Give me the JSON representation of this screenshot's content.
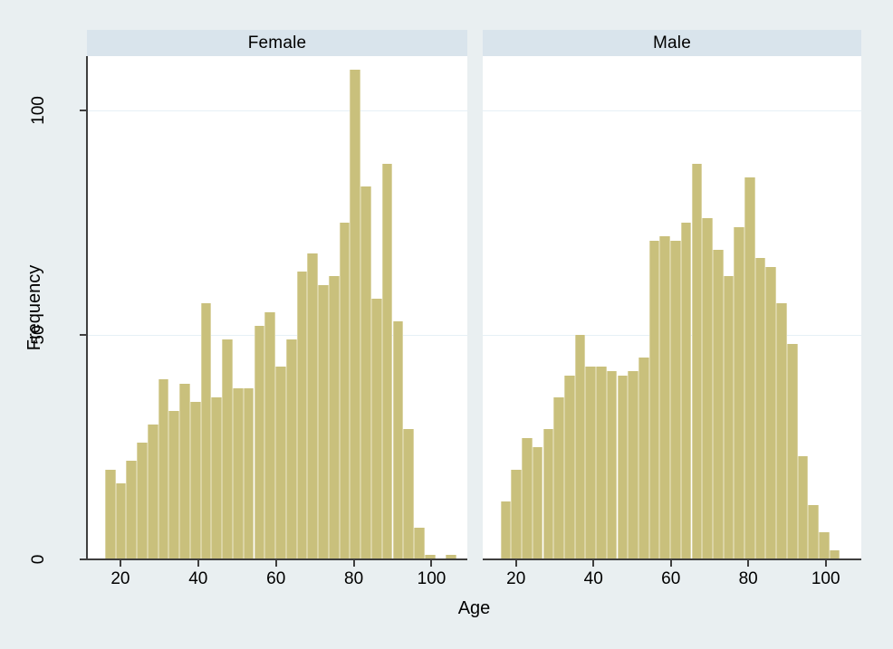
{
  "chart_data": {
    "type": "bar",
    "subtype": "faceted-histogram",
    "title": "",
    "xlabel": "Age",
    "ylabel": "Frequency",
    "x_ticks": [
      20,
      40,
      60,
      80,
      100
    ],
    "y_ticks": [
      0,
      50,
      100
    ],
    "xlim": [
      11.4,
      109.2
    ],
    "ylim": [
      0,
      112
    ],
    "grid": true,
    "legend": "none",
    "bin_start_age": 16,
    "bin_width_years": 2.74,
    "panels": [
      {
        "label": "Female",
        "frequencies": [
          20,
          17,
          22,
          26,
          30,
          40,
          33,
          39,
          35,
          57,
          36,
          49,
          38,
          38,
          52,
          55,
          43,
          49,
          64,
          68,
          61,
          63,
          75,
          109,
          83,
          58,
          88,
          53,
          29,
          7,
          1,
          0,
          1
        ]
      },
      {
        "label": "Male",
        "frequencies": [
          13,
          20,
          27,
          25,
          29,
          36,
          41,
          50,
          43,
          43,
          42,
          41,
          42,
          45,
          71,
          72,
          71,
          75,
          88,
          76,
          69,
          63,
          74,
          85,
          67,
          65,
          57,
          48,
          23,
          12,
          6,
          2
        ]
      }
    ],
    "colors": {
      "outer_bg": "#e9eff1",
      "header_bg": "#d9e4ec",
      "plot_bg": "#ffffff",
      "gridline": "#e6f0f6",
      "axis": "#3f3f3f",
      "text": "#000000",
      "bar_fill": "#c9c07c",
      "bar_edge": "#dbd4a4"
    }
  }
}
